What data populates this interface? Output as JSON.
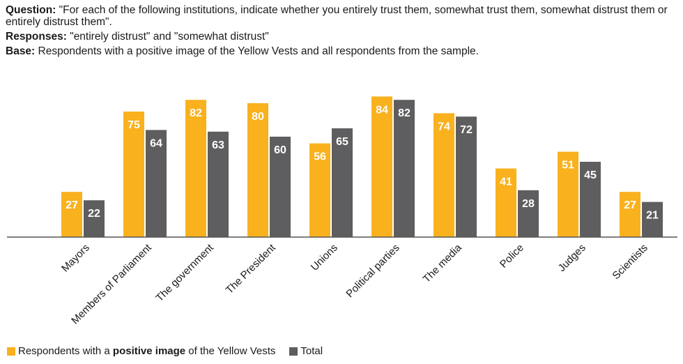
{
  "header": {
    "question_label": "Question:",
    "question_text": "\"For each of the following institutions, indicate whether you entirely trust them, somewhat trust them, somewhat distrust them or entirely distrust them\".",
    "responses_label": "Responses:",
    "responses_text": "\"entirely distrust\" and \"somewhat distrust\"",
    "base_label": "Base:",
    "base_text": "Respondents with a positive image of the Yellow Vests and all respondents from the sample."
  },
  "legend": {
    "series1_prefix": "Respondents with a ",
    "series1_bold": "positive image",
    "series1_suffix": " of the Yellow Vests",
    "series2": "Total"
  },
  "colors": {
    "series1": "#F9B11E",
    "series2": "#5E5E60",
    "axis": "#555555"
  },
  "chart_data": {
    "type": "bar",
    "categories": [
      "Mayors",
      "Members of Parliament",
      "The government",
      "The President",
      "Unions",
      "Political parties",
      "The media",
      "Police",
      "Judges",
      "Scientists"
    ],
    "series": [
      {
        "name": "Respondents with a positive image of the Yellow Vests",
        "values": [
          27,
          75,
          82,
          80,
          56,
          84,
          74,
          41,
          51,
          27
        ]
      },
      {
        "name": "Total",
        "values": [
          22,
          64,
          63,
          60,
          65,
          82,
          72,
          28,
          45,
          21
        ]
      }
    ],
    "ylim": [
      0,
      100
    ],
    "legend_position": "bottom-left"
  }
}
